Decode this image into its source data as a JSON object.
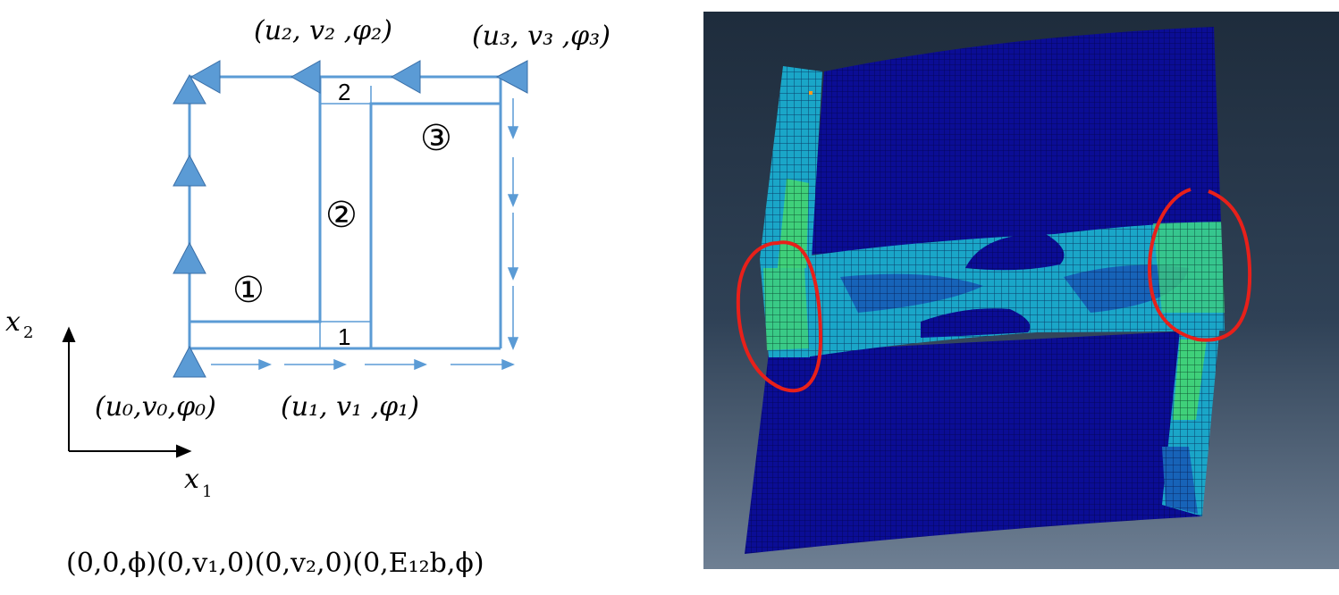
{
  "labels": {
    "node0": "(u₀,v₀,φ₀)",
    "node1": "(u₁, v₁ ,φ₁)",
    "node2": "(u₂, v₂ ,φ₂)",
    "node3": "(u₃, v₃ ,φ₃)",
    "region1": "①",
    "region2": "②",
    "region3": "③",
    "strip_bottom": "1",
    "strip_top": "2",
    "axis_x1": "x",
    "axis_x1_sub": "1",
    "axis_x2": "x",
    "axis_x2_sub": "2",
    "boundary_conditions": "(0,0,ϕ)(0,v₁,0)(0,v₂,0)(0,E₁₂b,ϕ)"
  },
  "colors": {
    "line": "#5b9bd5",
    "marker_fill": "#5b9bd5",
    "marker_stroke": "#3a6fa8",
    "fea_background_top": "#1e2c3c",
    "fea_background_bottom": "#6e7f93",
    "mesh_base": "#0a0a8c",
    "highlight": "#e8201a"
  }
}
